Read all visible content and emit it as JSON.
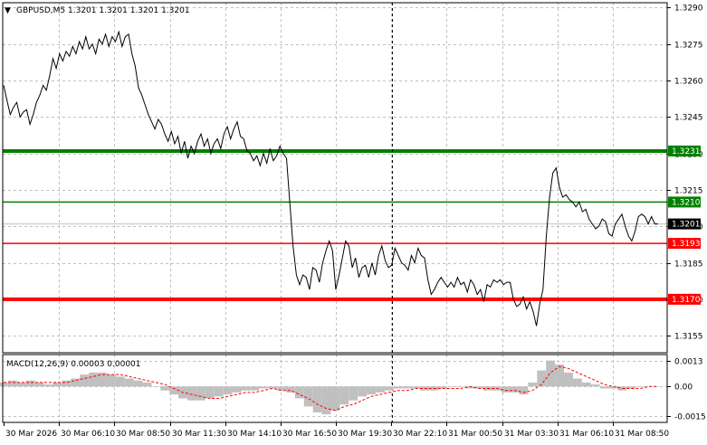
{
  "symbol_header": {
    "arrow": "▼",
    "text": "GBPUSD,M5  1.3201 1.3201 1.3201 1.3201"
  },
  "macd_header": {
    "text": "MACD(12,26,9) 0.00003 0.00001"
  },
  "colors": {
    "price_line": "#000000",
    "grid": "#c0c0c0",
    "level_green": "#008000",
    "level_red": "#ff0000",
    "current_price_box": "#000000",
    "macd_histogram": "#c0c0c0",
    "macd_signal": "#ff0000"
  },
  "chart_data": [
    {
      "type": "line",
      "name": "price",
      "ylim": [
        1.3148,
        1.3292
      ],
      "y_ticks": [
        "1.3290",
        "1.3275",
        "1.3260",
        "1.3245",
        "1.3230",
        "1.3215",
        "1.3200",
        "1.3185",
        "1.3170",
        "1.3155"
      ],
      "y_tick_values": [
        1.329,
        1.3275,
        1.326,
        1.3245,
        1.323,
        1.3215,
        1.32,
        1.3185,
        1.317,
        1.3155
      ],
      "x_labels": [
        "30 Mar 2026",
        "30 Mar 06:10",
        "30 Mar 08:50",
        "30 Mar 11:30",
        "30 Mar 14:10",
        "30 Mar 16:50",
        "30 Mar 19:30",
        "30 Mar 22:10",
        "31 Mar 00:50",
        "31 Mar 03:30",
        "31 Mar 06:10",
        "31 Mar 08:50"
      ],
      "values": [
        1.3258,
        1.3252,
        1.3246,
        1.3249,
        1.3251,
        1.3245,
        1.3247,
        1.3248,
        1.3242,
        1.3246,
        1.3251,
        1.3254,
        1.3258,
        1.3256,
        1.3262,
        1.3269,
        1.3265,
        1.3271,
        1.3268,
        1.3272,
        1.327,
        1.3274,
        1.3271,
        1.3276,
        1.3273,
        1.3278,
        1.3273,
        1.3275,
        1.3271,
        1.3277,
        1.3275,
        1.3279,
        1.3274,
        1.3278,
        1.3276,
        1.328,
        1.3274,
        1.3278,
        1.3279,
        1.3271,
        1.3266,
        1.3257,
        1.3254,
        1.325,
        1.3246,
        1.3243,
        1.324,
        1.3244,
        1.3242,
        1.3238,
        1.3235,
        1.3239,
        1.3234,
        1.3237,
        1.323,
        1.3235,
        1.3228,
        1.3233,
        1.323,
        1.3235,
        1.3238,
        1.3233,
        1.3236,
        1.323,
        1.3234,
        1.3236,
        1.3232,
        1.3238,
        1.3241,
        1.3236,
        1.324,
        1.3243,
        1.3237,
        1.3236,
        1.3231,
        1.323,
        1.3227,
        1.3229,
        1.3225,
        1.323,
        1.3226,
        1.3232,
        1.3227,
        1.3229,
        1.3233,
        1.323,
        1.3228,
        1.321,
        1.3192,
        1.318,
        1.3176,
        1.318,
        1.3179,
        1.3174,
        1.3183,
        1.3182,
        1.3177,
        1.3185,
        1.319,
        1.3194,
        1.319,
        1.3174,
        1.318,
        1.3187,
        1.3194,
        1.3192,
        1.3183,
        1.3187,
        1.3179,
        1.3183,
        1.3184,
        1.3179,
        1.3185,
        1.318,
        1.3188,
        1.3192,
        1.3186,
        1.3183,
        1.3184,
        1.3191,
        1.3188,
        1.3185,
        1.3184,
        1.3182,
        1.3188,
        1.3185,
        1.3191,
        1.3188,
        1.3187,
        1.3178,
        1.3172,
        1.3174,
        1.3177,
        1.3179,
        1.3177,
        1.3175,
        1.3177,
        1.3175,
        1.3179,
        1.3176,
        1.3177,
        1.3173,
        1.3178,
        1.3176,
        1.3172,
        1.3174,
        1.3169,
        1.3176,
        1.3175,
        1.3178,
        1.3177,
        1.3178,
        1.3176,
        1.3177,
        1.3177,
        1.317,
        1.3167,
        1.3168,
        1.3171,
        1.3166,
        1.3169,
        1.3165,
        1.3159,
        1.3168,
        1.3174,
        1.3196,
        1.3212,
        1.3222,
        1.3224,
        1.3216,
        1.3212,
        1.3213,
        1.3211,
        1.321,
        1.3208,
        1.321,
        1.3206,
        1.3207,
        1.3203,
        1.3201,
        1.3199,
        1.32,
        1.3203,
        1.3202,
        1.3197,
        1.3196,
        1.3201,
        1.3203,
        1.3205,
        1.32,
        1.3196,
        1.3194,
        1.3198,
        1.3204,
        1.3205,
        1.3204,
        1.3201,
        1.3204,
        1.3201,
        1.3201
      ],
      "horizontal_levels": [
        {
          "label": "1.3231",
          "value": 1.3231,
          "color": "#008000",
          "thick": true
        },
        {
          "label": "1.3210",
          "value": 1.321,
          "color": "#008000",
          "thick": false
        },
        {
          "label": "1.3193",
          "value": 1.3193,
          "color": "#ff0000",
          "thick": false
        },
        {
          "label": "1.3170",
          "value": 1.317,
          "color": "#ff0000",
          "thick": true
        }
      ],
      "current_price": {
        "label": "1.3201",
        "value": 1.3201
      },
      "grid": true
    },
    {
      "type": "bar",
      "name": "MACD(12,26,9)",
      "ylim": [
        -0.0018,
        0.0016
      ],
      "y_ticks": [
        "0.0013",
        "0.00",
        "-0.0015"
      ],
      "y_tick_values": [
        0.0013,
        0.0,
        -0.0015
      ],
      "histogram": [
        0.0002,
        0.0003,
        0.0002,
        0.0003,
        0.0002,
        0.0001,
        0.0002,
        0.0003,
        0.0004,
        0.0006,
        0.0007,
        0.0007,
        0.0006,
        0.0005,
        0.0004,
        0.0003,
        0.0002,
        0.0,
        -0.0002,
        -0.0004,
        -0.0006,
        -0.0007,
        -0.0007,
        -0.0006,
        -0.0005,
        -0.0004,
        -0.0003,
        -0.0002,
        -0.0002,
        -0.0001,
        -0.0001,
        -0.0002,
        -0.0003,
        -0.0006,
        -0.001,
        -0.0013,
        -0.0014,
        -0.0012,
        -0.0009,
        -0.0007,
        -0.0005,
        -0.0004,
        -0.0003,
        -0.0002,
        -0.0001,
        -0.0001,
        -0.0001,
        -0.0002,
        -0.0002,
        -0.0001,
        0.0,
        0.0,
        -0.0001,
        -0.0001,
        -0.0002,
        -0.0002,
        -0.0003,
        -0.0003,
        -0.0004,
        0.0002,
        0.0008,
        0.0013,
        0.0011,
        0.0007,
        0.0004,
        0.0002,
        0.0001,
        -0.0001,
        -0.0001,
        -0.0002,
        -0.0001,
        0.0,
        0.0,
        0.0
      ],
      "signal": [
        0.0002,
        0.0002,
        0.0002,
        0.0002,
        0.0002,
        0.0002,
        0.0002,
        0.0002,
        0.0003,
        0.0004,
        0.0005,
        0.0006,
        0.0006,
        0.0006,
        0.0005,
        0.0004,
        0.0003,
        0.0002,
        0.0001,
        -0.0001,
        -0.0003,
        -0.0004,
        -0.0005,
        -0.0006,
        -0.0006,
        -0.0005,
        -0.0004,
        -0.0003,
        -0.0003,
        -0.0002,
        -0.0001,
        -0.0002,
        -0.0002,
        -0.0004,
        -0.0006,
        -0.0009,
        -0.0011,
        -0.0012,
        -0.001,
        -0.0009,
        -0.0007,
        -0.0005,
        -0.0004,
        -0.0003,
        -0.0002,
        -0.0002,
        -0.0001,
        -0.0001,
        -0.0001,
        -0.0001,
        -0.0001,
        -0.0001,
        0.0,
        -0.0001,
        -0.0001,
        -0.0001,
        -0.0002,
        -0.0002,
        -0.0003,
        -0.0002,
        0.0001,
        0.0007,
        0.001,
        0.0009,
        0.0007,
        0.0005,
        0.0003,
        0.0001,
        0.0,
        -0.0001,
        -0.0001,
        -0.0001,
        0.0,
        0.0
      ]
    }
  ]
}
